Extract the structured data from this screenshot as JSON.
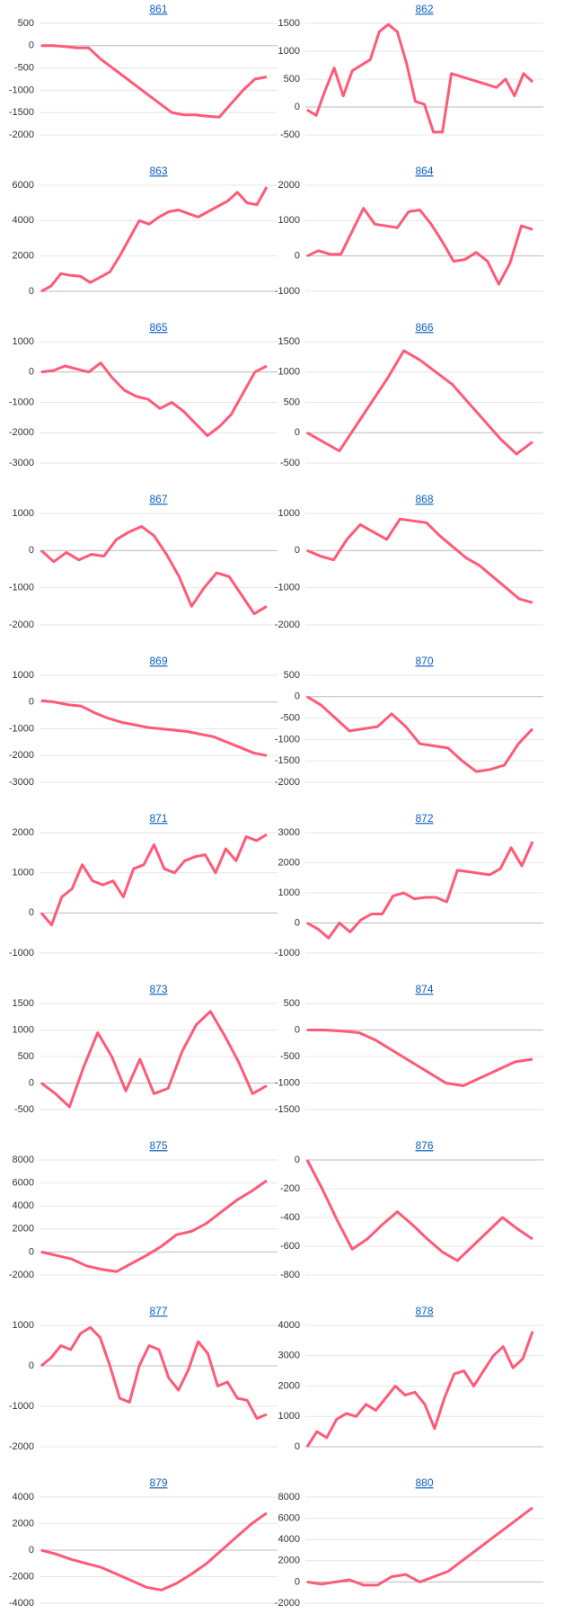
{
  "chart_data": [
    {
      "type": "line",
      "title": "861",
      "color": "#ff5a78",
      "grid": true,
      "ylim": [
        -2000,
        500
      ],
      "yticks": [
        500,
        0,
        -500,
        -1000,
        -1500,
        -2000
      ],
      "values": [
        0,
        0,
        -20,
        -50,
        -50,
        -300,
        -500,
        -700,
        -900,
        -1100,
        -1300,
        -1500,
        -1550,
        -1550,
        -1580,
        -1600,
        -1300,
        -1000,
        -750,
        -700
      ]
    },
    {
      "type": "line",
      "title": "862",
      "color": "#ff5a78",
      "grid": true,
      "ylim": [
        -500,
        1500
      ],
      "yticks": [
        1500,
        1000,
        500,
        0,
        -500
      ],
      "values": [
        -50,
        -150,
        300,
        700,
        200,
        650,
        750,
        850,
        1350,
        1480,
        1350,
        800,
        100,
        50,
        -450,
        -450,
        600,
        550,
        500,
        450,
        400,
        350,
        500,
        200,
        600,
        450
      ]
    },
    {
      "type": "line",
      "title": "863",
      "color": "#ff5a78",
      "grid": true,
      "ylim": [
        0,
        6000
      ],
      "yticks": [
        6000,
        4000,
        2000,
        0
      ],
      "values": [
        0,
        300,
        1000,
        900,
        850,
        500,
        800,
        1100,
        2000,
        3000,
        4000,
        3800,
        4200,
        4500,
        4600,
        4400,
        4200,
        4500,
        4800,
        5100,
        5600,
        5000,
        4900,
        5900
      ]
    },
    {
      "type": "line",
      "title": "864",
      "color": "#ff5a78",
      "grid": true,
      "ylim": [
        -1000,
        2000
      ],
      "yticks": [
        2000,
        1000,
        0,
        -1000
      ],
      "values": [
        0,
        150,
        50,
        50,
        700,
        1350,
        900,
        850,
        800,
        1250,
        1300,
        900,
        400,
        -150,
        -100,
        100,
        -150,
        -800,
        -200,
        850,
        750
      ]
    },
    {
      "type": "line",
      "title": "865",
      "color": "#ff5a78",
      "grid": true,
      "ylim": [
        -3000,
        1000
      ],
      "yticks": [
        1000,
        0,
        -1000,
        -2000,
        -3000
      ],
      "values": [
        0,
        50,
        200,
        100,
        0,
        300,
        -200,
        -600,
        -800,
        -900,
        -1200,
        -1000,
        -1300,
        -1700,
        -2100,
        -1800,
        -1400,
        -700,
        0,
        200
      ]
    },
    {
      "type": "line",
      "title": "866",
      "color": "#ff5a78",
      "grid": true,
      "ylim": [
        -500,
        1500
      ],
      "yticks": [
        1500,
        1000,
        500,
        0,
        -500
      ],
      "values": [
        0,
        -150,
        -300,
        100,
        500,
        900,
        1350,
        1200,
        1000,
        800,
        500,
        200,
        -100,
        -350,
        -150
      ]
    },
    {
      "type": "line",
      "title": "867",
      "color": "#ff5a78",
      "grid": true,
      "ylim": [
        -2000,
        1000
      ],
      "yticks": [
        1000,
        0,
        -1000,
        -2000
      ],
      "values": [
        0,
        -300,
        -50,
        -250,
        -100,
        -150,
        300,
        500,
        650,
        400,
        -100,
        -700,
        -1500,
        -1000,
        -600,
        -700,
        -1200,
        -1700,
        -1500
      ]
    },
    {
      "type": "line",
      "title": "868",
      "color": "#ff5a78",
      "grid": true,
      "ylim": [
        -2000,
        1000
      ],
      "yticks": [
        1000,
        0,
        -1000,
        -2000
      ],
      "values": [
        0,
        -150,
        -250,
        300,
        700,
        500,
        300,
        850,
        800,
        750,
        400,
        100,
        -200,
        -400,
        -700,
        -1000,
        -1300,
        -1400
      ]
    },
    {
      "type": "line",
      "title": "869",
      "color": "#ff5a78",
      "grid": true,
      "ylim": [
        -3000,
        1000
      ],
      "yticks": [
        1000,
        0,
        -1000,
        -2000,
        -3000
      ],
      "values": [
        50,
        0,
        -100,
        -150,
        -400,
        -600,
        -750,
        -850,
        -950,
        -1000,
        -1050,
        -1100,
        -1200,
        -1300,
        -1500,
        -1700,
        -1900,
        -2000
      ]
    },
    {
      "type": "line",
      "title": "870",
      "color": "#ff5a78",
      "grid": true,
      "ylim": [
        -2000,
        500
      ],
      "yticks": [
        500,
        0,
        -500,
        -1000,
        -1500,
        -2000
      ],
      "values": [
        0,
        -200,
        -500,
        -800,
        -750,
        -700,
        -400,
        -700,
        -1100,
        -1150,
        -1200,
        -1500,
        -1750,
        -1700,
        -1600,
        -1100,
        -750
      ]
    },
    {
      "type": "line",
      "title": "871",
      "color": "#ff5a78",
      "grid": true,
      "ylim": [
        -1000,
        2000
      ],
      "yticks": [
        2000,
        1000,
        0,
        -1000
      ],
      "values": [
        0,
        -300,
        400,
        600,
        1200,
        800,
        700,
        800,
        400,
        1100,
        1200,
        1700,
        1100,
        1000,
        1300,
        1400,
        1450,
        1000,
        1600,
        1300,
        1900,
        1800,
        1950
      ]
    },
    {
      "type": "line",
      "title": "872",
      "color": "#ff5a78",
      "grid": true,
      "ylim": [
        -1000,
        3000
      ],
      "yticks": [
        3000,
        2000,
        1000,
        0,
        -1000
      ],
      "values": [
        0,
        -200,
        -500,
        0,
        -300,
        100,
        300,
        300,
        900,
        1000,
        800,
        850,
        850,
        700,
        1750,
        1700,
        1650,
        1600,
        1800,
        2500,
        1900,
        2700
      ]
    },
    {
      "type": "line",
      "title": "873",
      "color": "#ff5a78",
      "grid": true,
      "ylim": [
        -500,
        1500
      ],
      "yticks": [
        1500,
        1000,
        500,
        0,
        -500
      ],
      "values": [
        0,
        -200,
        -450,
        300,
        950,
        500,
        -150,
        450,
        -200,
        -100,
        600,
        1100,
        1350,
        900,
        400,
        -200,
        -50
      ]
    },
    {
      "type": "line",
      "title": "874",
      "color": "#ff5a78",
      "grid": true,
      "ylim": [
        -1500,
        500
      ],
      "yticks": [
        500,
        0,
        -500,
        -1000,
        -1500
      ],
      "values": [
        0,
        0,
        -20,
        -50,
        -200,
        -400,
        -600,
        -800,
        -1000,
        -1050,
        -900,
        -750,
        -600,
        -550
      ]
    },
    {
      "type": "line",
      "title": "875",
      "color": "#ff5a78",
      "grid": true,
      "ylim": [
        -2000,
        8000
      ],
      "yticks": [
        8000,
        6000,
        4000,
        2000,
        0,
        -2000
      ],
      "values": [
        0,
        -300,
        -600,
        -1200,
        -1500,
        -1700,
        -1000,
        -300,
        500,
        1500,
        1800,
        2500,
        3500,
        4500,
        5300,
        6200
      ]
    },
    {
      "type": "line",
      "title": "876",
      "color": "#ff5a78",
      "grid": true,
      "ylim": [
        -800,
        0
      ],
      "yticks": [
        0,
        -200,
        -400,
        -600,
        -800
      ],
      "values": [
        0,
        -200,
        -420,
        -620,
        -550,
        -450,
        -360,
        -450,
        -550,
        -640,
        -700,
        -600,
        -500,
        -400,
        -480,
        -550
      ]
    },
    {
      "type": "line",
      "title": "877",
      "color": "#ff5a78",
      "grid": true,
      "ylim": [
        -2000,
        1000
      ],
      "yticks": [
        1000,
        0,
        -1000,
        -2000
      ],
      "values": [
        0,
        200,
        500,
        400,
        800,
        950,
        700,
        0,
        -800,
        -900,
        0,
        500,
        400,
        -300,
        -600,
        -100,
        600,
        300,
        -500,
        -400,
        -800,
        -850,
        -1300,
        -1200
      ]
    },
    {
      "type": "line",
      "title": "878",
      "color": "#ff5a78",
      "grid": true,
      "ylim": [
        0,
        4000
      ],
      "yticks": [
        4000,
        3000,
        2000,
        1000,
        0
      ],
      "values": [
        0,
        500,
        300,
        900,
        1100,
        1000,
        1400,
        1200,
        1600,
        2000,
        1700,
        1800,
        1400,
        600,
        1600,
        2400,
        2500,
        2000,
        2500,
        3000,
        3300,
        2600,
        2900,
        3800
      ]
    },
    {
      "type": "line",
      "title": "879",
      "color": "#ff5a78",
      "grid": true,
      "ylim": [
        -4000,
        4000
      ],
      "yticks": [
        4000,
        2000,
        0,
        -2000,
        -4000
      ],
      "values": [
        0,
        -300,
        -700,
        -1000,
        -1300,
        -1800,
        -2300,
        -2800,
        -3000,
        -2500,
        -1800,
        -1000,
        0,
        1000,
        2000,
        2800
      ]
    },
    {
      "type": "line",
      "title": "880",
      "color": "#ff5a78",
      "grid": true,
      "ylim": [
        -2000,
        8000
      ],
      "yticks": [
        8000,
        6000,
        4000,
        2000,
        0,
        -2000
      ],
      "values": [
        0,
        -200,
        0,
        200,
        -300,
        -300,
        500,
        700,
        0,
        500,
        1000,
        2000,
        3000,
        4000,
        5000,
        6000,
        7000
      ]
    }
  ]
}
